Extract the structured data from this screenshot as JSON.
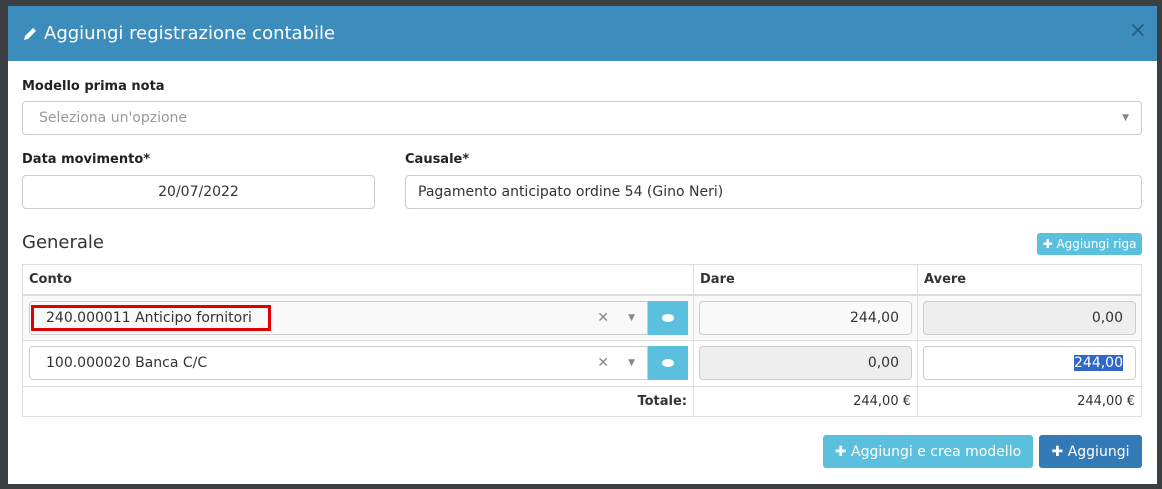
{
  "modal": {
    "title": "Aggiungi registrazione contabile",
    "close": "×"
  },
  "form": {
    "modello_label": "Modello prima nota",
    "modello_placeholder": "Seleziona un'opzione",
    "data_label": "Data movimento*",
    "data_value": "20/07/2022",
    "causale_label": "Causale*",
    "causale_value": "Pagamento anticipato ordine 54 (Gino Neri)"
  },
  "section": {
    "title": "Generale",
    "add_row": "Aggiungi riga"
  },
  "table": {
    "headers": [
      "Conto",
      "Dare",
      "Avere"
    ],
    "rows": [
      {
        "conto": "240.000011 Anticipo fornitori",
        "dare": "244,00",
        "avere": "0,00"
      },
      {
        "conto": "100.000020 Banca C/C",
        "dare": "0,00",
        "avere": "244,00"
      }
    ],
    "total_label": "Totale:",
    "total_dare": "244,00 €",
    "total_avere": "244,00 €"
  },
  "footer": {
    "add_and_model": "Aggiungi e crea modello",
    "add": "Aggiungi"
  },
  "colors": {
    "header": "#3c8dbc",
    "info": "#5bc0de",
    "primary": "#337ab7",
    "highlight": "#e00000"
  }
}
